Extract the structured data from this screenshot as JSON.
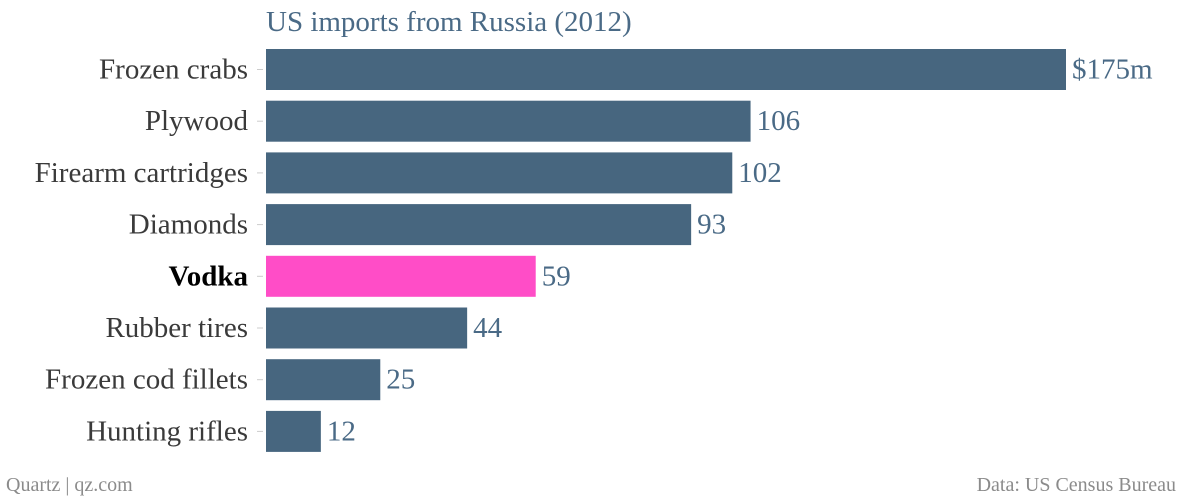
{
  "chart_data": {
    "type": "bar",
    "orientation": "horizontal",
    "title": "US imports from Russia (2012)",
    "categories": [
      "Frozen crabs",
      "Plywood",
      "Firearm cartridges",
      "Diamonds",
      "Vodka",
      "Rubber tires",
      "Frozen cod fillets",
      "Hunting rifles"
    ],
    "values": [
      175,
      106,
      102,
      93,
      59,
      44,
      25,
      12
    ],
    "value_labels": [
      "$175m",
      "106",
      "102",
      "93",
      "59",
      "44",
      "25",
      "12"
    ],
    "highlight": "Vodka",
    "unit": "$ millions",
    "xlim": [
      0,
      175
    ],
    "grid": false,
    "colors": {
      "bar": "#47667f",
      "highlight": "#ff4dc7",
      "label": "#3a3a3a",
      "highlight_label": "#000000",
      "value_label": "#4a6a86",
      "title": "#4a6a86"
    }
  },
  "footer": {
    "credit": "Quartz | qz.com",
    "source": "Data: US Census Bureau"
  }
}
